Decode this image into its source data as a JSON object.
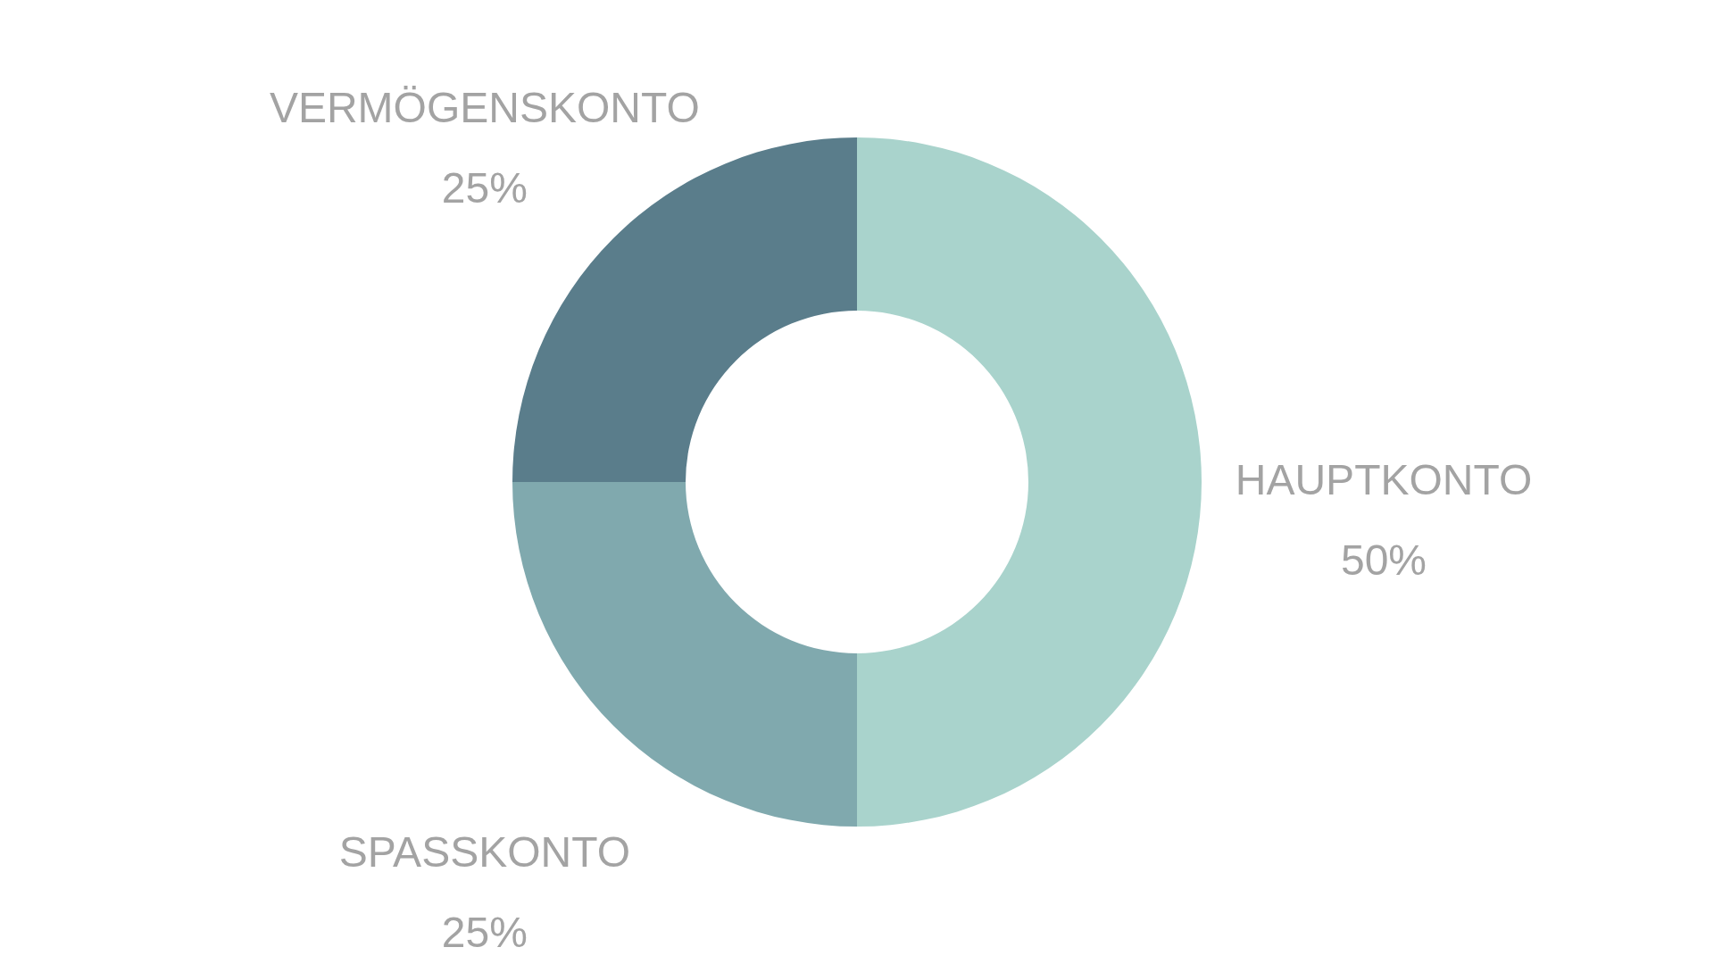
{
  "chart_data": {
    "type": "donut",
    "categories": [
      "HAUPTKONTO",
      "SPASSKONTO",
      "VERMÖGENSKONTO"
    ],
    "values": [
      50,
      25,
      25
    ],
    "value_labels": [
      "50%",
      "25%",
      "25%"
    ],
    "colors": [
      "#a9d3cc",
      "#80a9ae",
      "#5a7d8b"
    ],
    "legend": false
  }
}
